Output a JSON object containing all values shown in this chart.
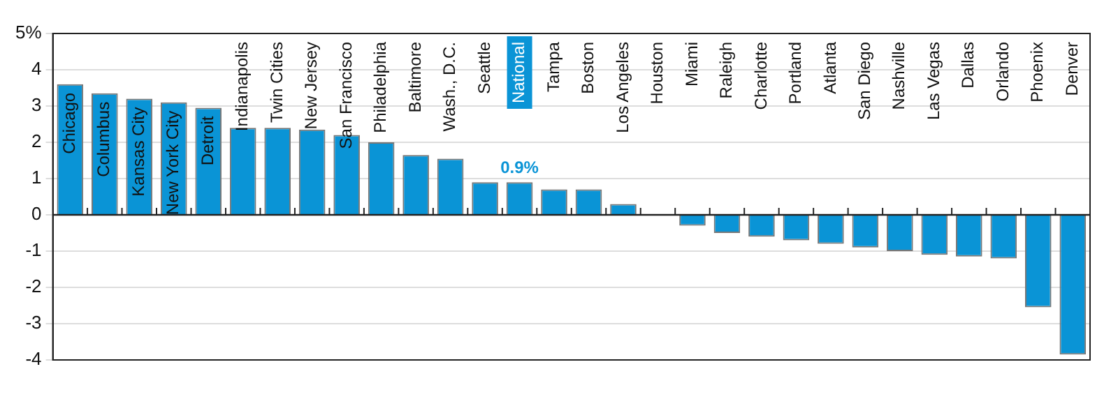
{
  "chart_data": {
    "type": "bar",
    "categories": [
      "Chicago",
      "Columbus",
      "Kansas City",
      "New York City",
      "Detroit",
      "Indianapolis",
      "Twin Cities",
      "New Jersey",
      "San Francisco",
      "Philadelphia",
      "Baltimore",
      "Wash., D.C.",
      "Seattle",
      "National",
      "Tampa",
      "Boston",
      "Los Angeles",
      "Houston",
      "Miami",
      "Raleigh",
      "Charlotte",
      "Portland",
      "Atlanta",
      "San Diego",
      "Nashville",
      "Las Vegas",
      "Dallas",
      "Orlando",
      "Phoenix",
      "Denver"
    ],
    "values": [
      3.6,
      3.35,
      3.2,
      3.1,
      2.95,
      2.4,
      2.4,
      2.35,
      2.2,
      2.0,
      1.65,
      1.55,
      0.9,
      0.9,
      0.7,
      0.7,
      0.3,
      0,
      -0.3,
      -0.5,
      -0.6,
      -0.7,
      -0.8,
      -0.9,
      -1.0,
      -1.1,
      -1.15,
      -1.2,
      -2.55,
      -3.85
    ],
    "color": "#0a94d6",
    "ylim": [
      -4,
      5
    ],
    "yticks": [
      -4,
      -3,
      -2,
      -1,
      0,
      1,
      2,
      3,
      4,
      {
        "value": 5,
        "label": "5%"
      }
    ],
    "grid": "y",
    "annotations": [
      {
        "text": "0.9%",
        "x": "National",
        "y": 0.9
      }
    ]
  }
}
